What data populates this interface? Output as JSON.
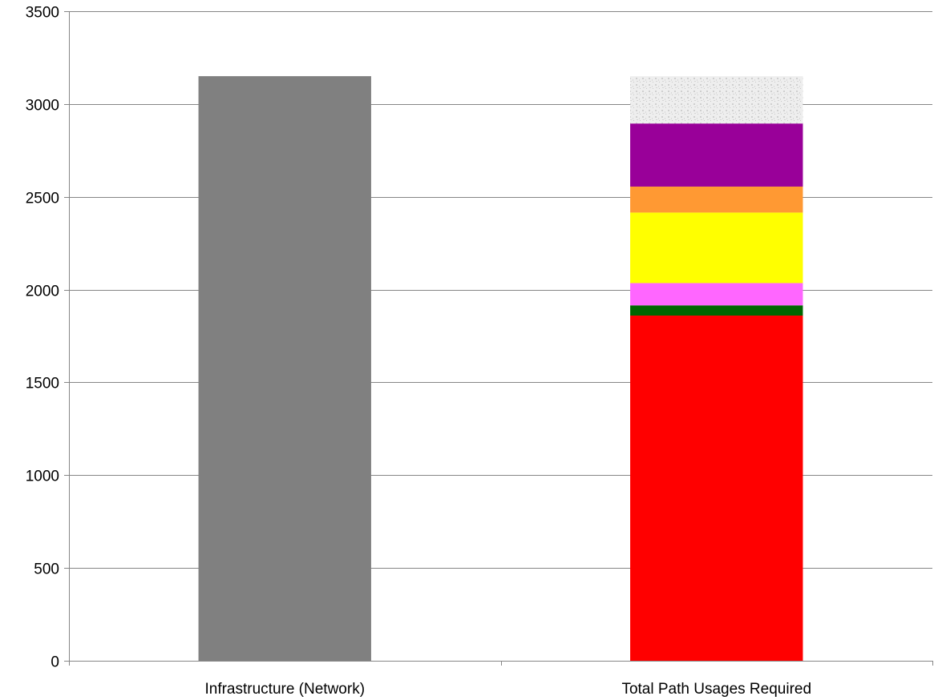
{
  "chart_data": {
    "type": "bar",
    "stacked": true,
    "title": "",
    "xlabel": "",
    "ylabel": "",
    "ylim": [
      0,
      3500
    ],
    "yticks": [
      0,
      500,
      1000,
      1500,
      2000,
      2500,
      3000,
      3500
    ],
    "grid": true,
    "legend": "none",
    "categories": [
      "Infrastructure (Network)",
      "Total Path Usages Required"
    ],
    "series": [
      {
        "color": "#808080",
        "values": [
          3150,
          0
        ]
      },
      {
        "color": "#ff0000",
        "values": [
          0,
          1860
        ]
      },
      {
        "color": "#006600",
        "values": [
          0,
          55
        ]
      },
      {
        "color": "#ff66ff",
        "values": [
          0,
          120
        ]
      },
      {
        "color": "#ffff00",
        "values": [
          0,
          380
        ]
      },
      {
        "color": "#ff9933",
        "values": [
          0,
          140
        ]
      },
      {
        "color": "#990099",
        "values": [
          0,
          340
        ]
      },
      {
        "color": "#eeeeee",
        "pattern": "speckle",
        "values": [
          0,
          255
        ]
      }
    ]
  }
}
